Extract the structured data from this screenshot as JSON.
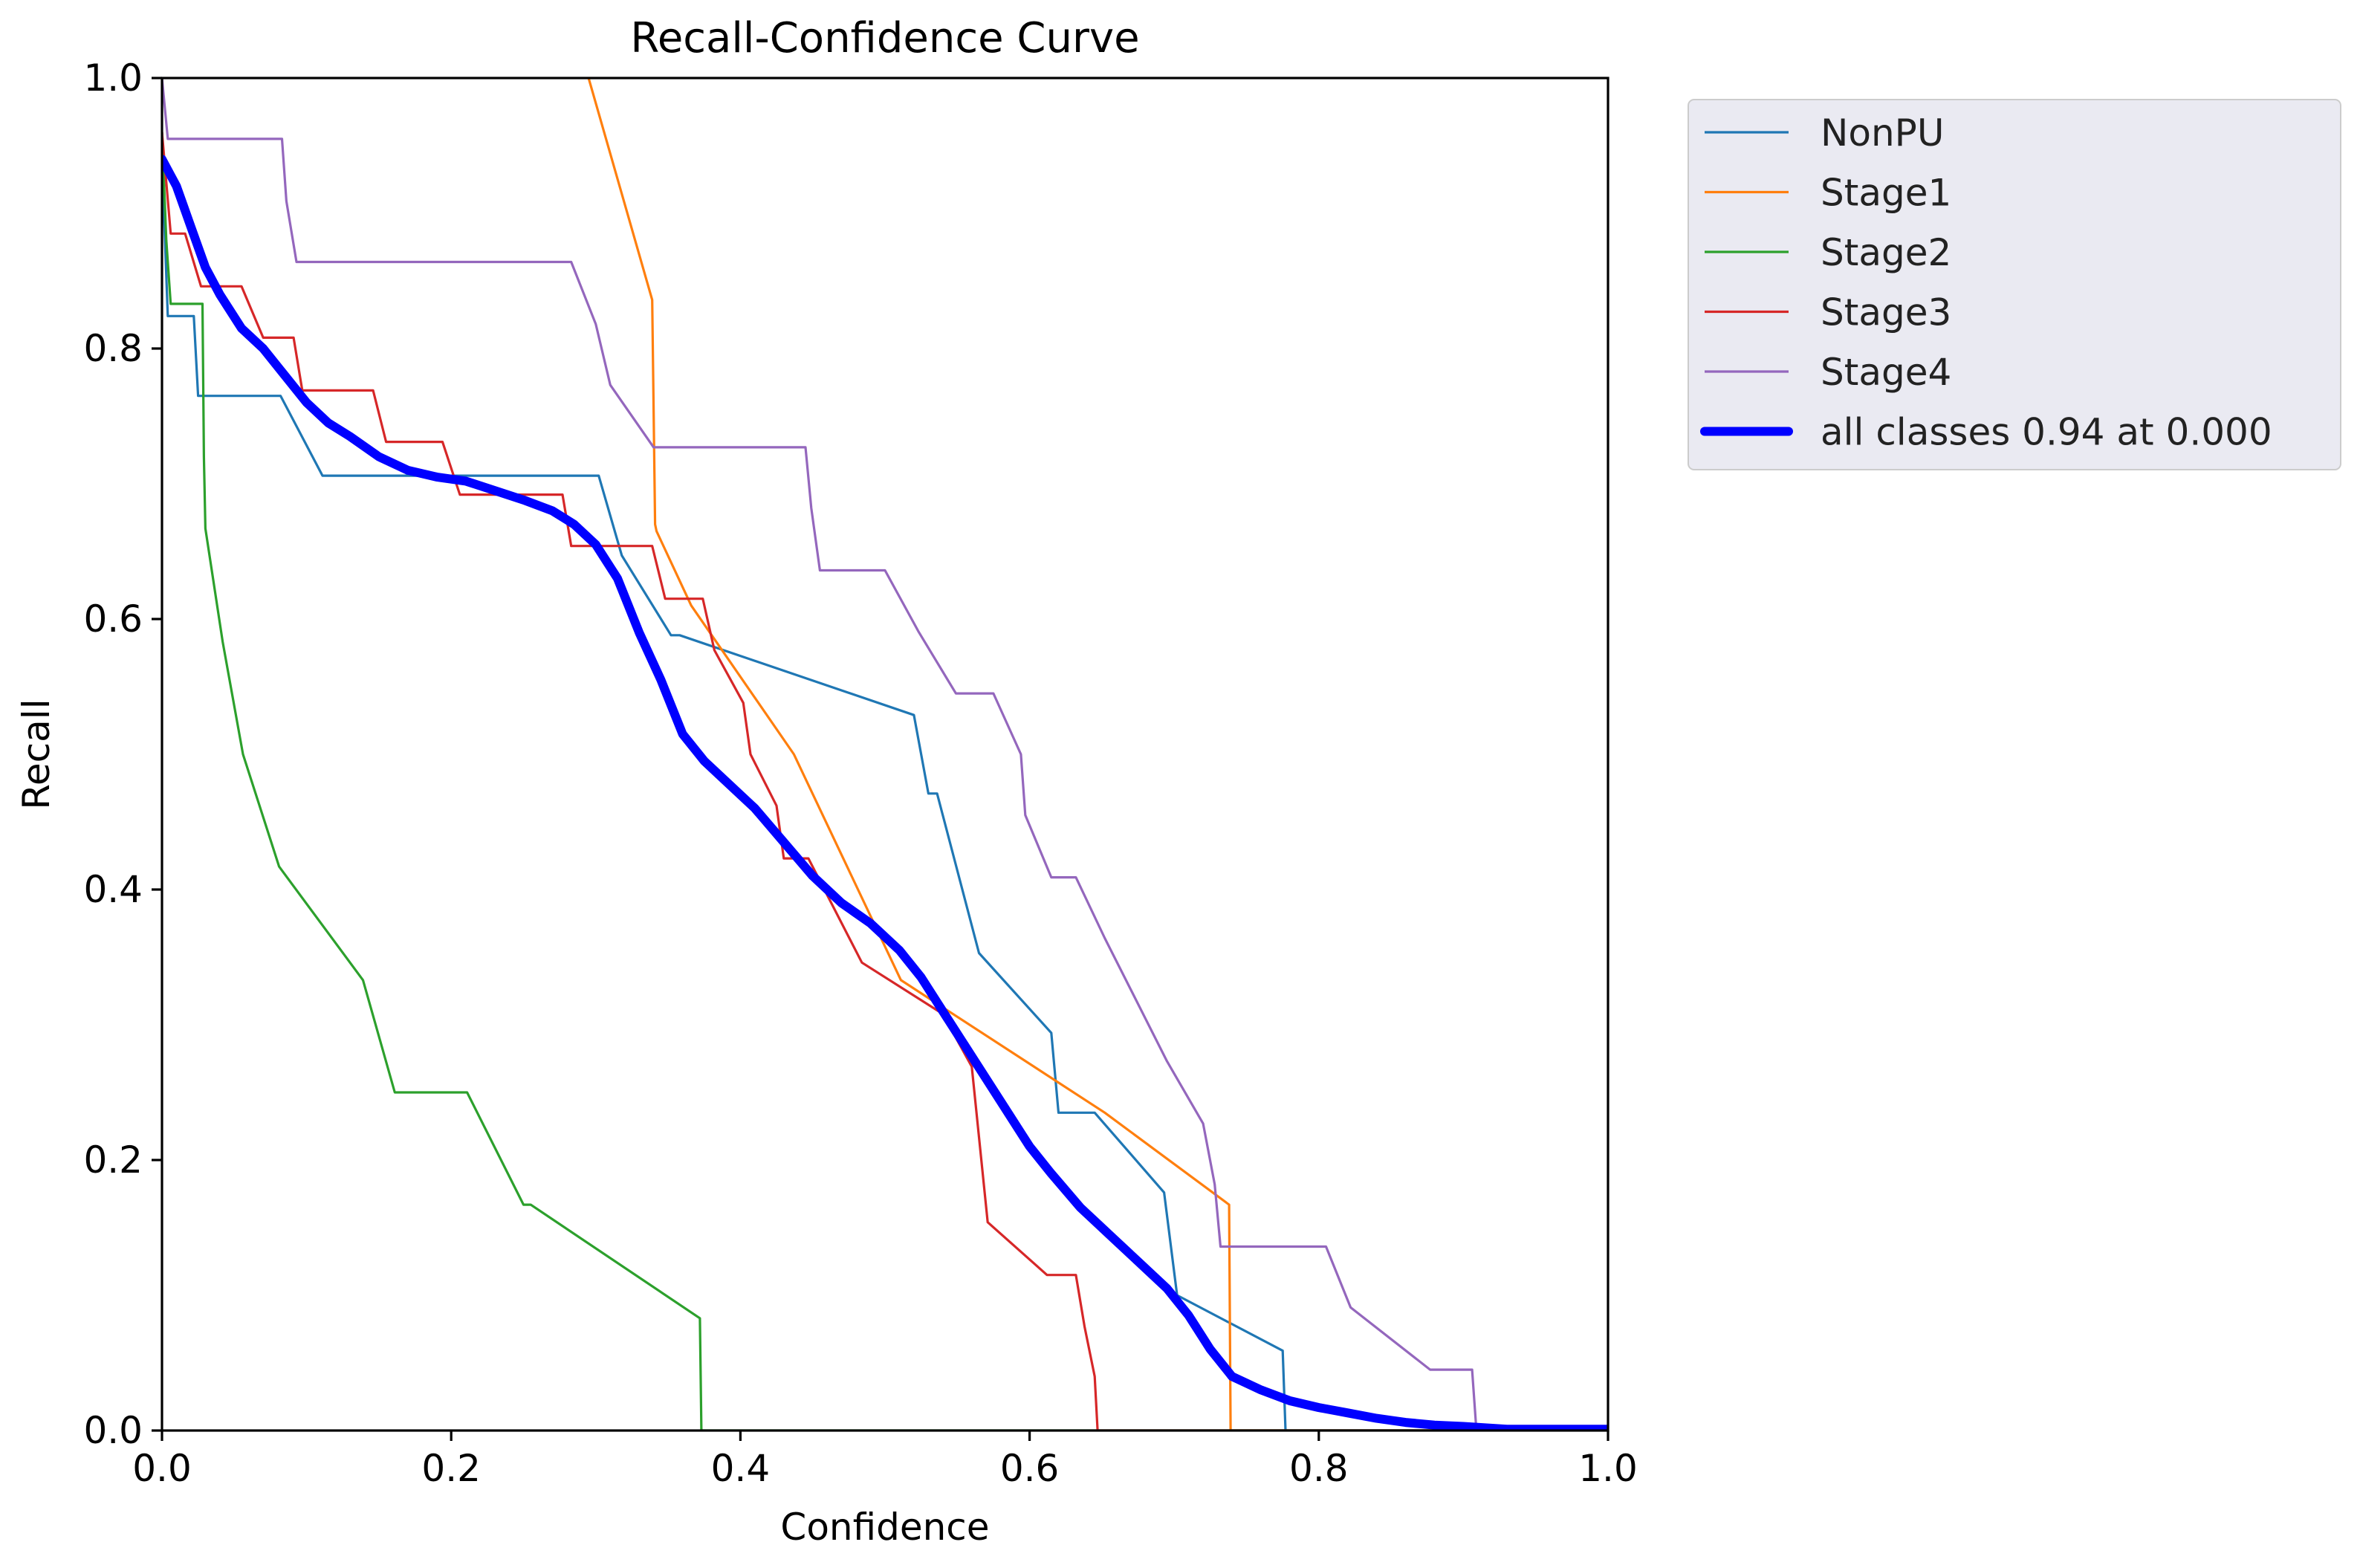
{
  "chart_data": {
    "type": "line",
    "title": "Recall-Confidence Curve",
    "xlabel": "Confidence",
    "ylabel": "Recall",
    "xlim": [
      0,
      1
    ],
    "ylim": [
      0,
      1
    ],
    "xticks": [
      "0.0",
      "0.2",
      "0.4",
      "0.6",
      "0.8",
      "1.0"
    ],
    "yticks": [
      "0.0",
      "0.2",
      "0.4",
      "0.6",
      "0.8",
      "1.0"
    ],
    "grid": false,
    "legend_position": "outside-top-right",
    "series": [
      {
        "name": "NonPU",
        "color": "#1f77b4",
        "thick": false,
        "points": [
          [
            0,
            0.94
          ],
          [
            0.004,
            0.824
          ],
          [
            0.022,
            0.824
          ],
          [
            0.025,
            0.765
          ],
          [
            0.082,
            0.765
          ],
          [
            0.111,
            0.706
          ],
          [
            0.302,
            0.706
          ],
          [
            0.318,
            0.647
          ],
          [
            0.352,
            0.588
          ],
          [
            0.358,
            0.588
          ],
          [
            0.52,
            0.529
          ],
          [
            0.53,
            0.471
          ],
          [
            0.536,
            0.471
          ],
          [
            0.565,
            0.353
          ],
          [
            0.615,
            0.294
          ],
          [
            0.62,
            0.235
          ],
          [
            0.645,
            0.235
          ],
          [
            0.693,
            0.176
          ],
          [
            0.702,
            0.1
          ],
          [
            0.775,
            0.059
          ],
          [
            0.777,
            0
          ],
          [
            1,
            0
          ]
        ]
      },
      {
        "name": "Stage1",
        "color": "#ff7f0e",
        "thick": false,
        "points": [
          [
            0.295,
            1.0
          ],
          [
            0.339,
            0.836
          ],
          [
            0.341,
            0.67
          ],
          [
            0.342,
            0.665
          ],
          [
            0.366,
            0.61
          ],
          [
            0.437,
            0.5
          ],
          [
            0.511,
            0.333
          ],
          [
            0.652,
            0.235
          ],
          [
            0.738,
            0.167
          ],
          [
            0.739,
            0
          ],
          [
            1,
            0
          ]
        ]
      },
      {
        "name": "Stage2",
        "color": "#2ca02c",
        "thick": false,
        "points": [
          [
            0,
            0.96
          ],
          [
            0.003,
            0.88
          ],
          [
            0.006,
            0.833
          ],
          [
            0.028,
            0.833
          ],
          [
            0.029,
            0.72
          ],
          [
            0.03,
            0.667
          ],
          [
            0.042,
            0.583
          ],
          [
            0.056,
            0.5
          ],
          [
            0.081,
            0.417
          ],
          [
            0.139,
            0.333
          ],
          [
            0.161,
            0.25
          ],
          [
            0.211,
            0.25
          ],
          [
            0.25,
            0.167
          ],
          [
            0.255,
            0.167
          ],
          [
            0.372,
            0.083
          ],
          [
            0.373,
            0
          ],
          [
            1,
            0
          ]
        ]
      },
      {
        "name": "Stage3",
        "color": "#d62728",
        "thick": false,
        "points": [
          [
            0,
            0.96
          ],
          [
            0.006,
            0.885
          ],
          [
            0.016,
            0.885
          ],
          [
            0.027,
            0.846
          ],
          [
            0.055,
            0.846
          ],
          [
            0.07,
            0.808
          ],
          [
            0.091,
            0.808
          ],
          [
            0.097,
            0.769
          ],
          [
            0.146,
            0.769
          ],
          [
            0.155,
            0.731
          ],
          [
            0.194,
            0.731
          ],
          [
            0.206,
            0.692
          ],
          [
            0.277,
            0.692
          ],
          [
            0.283,
            0.654
          ],
          [
            0.339,
            0.654
          ],
          [
            0.348,
            0.615
          ],
          [
            0.374,
            0.615
          ],
          [
            0.382,
            0.577
          ],
          [
            0.402,
            0.538
          ],
          [
            0.407,
            0.5
          ],
          [
            0.425,
            0.462
          ],
          [
            0.43,
            0.423
          ],
          [
            0.447,
            0.423
          ],
          [
            0.484,
            0.346
          ],
          [
            0.54,
            0.308
          ],
          [
            0.56,
            0.269
          ],
          [
            0.571,
            0.154
          ],
          [
            0.612,
            0.115
          ],
          [
            0.632,
            0.115
          ],
          [
            0.638,
            0.077
          ],
          [
            0.645,
            0.04
          ],
          [
            0.647,
            0
          ],
          [
            1,
            0
          ]
        ]
      },
      {
        "name": "Stage4",
        "color": "#9467bd",
        "thick": false,
        "points": [
          [
            0,
            1.0
          ],
          [
            0.004,
            0.955
          ],
          [
            0.083,
            0.955
          ],
          [
            0.086,
            0.909
          ],
          [
            0.093,
            0.864
          ],
          [
            0.283,
            0.864
          ],
          [
            0.3,
            0.818
          ],
          [
            0.31,
            0.773
          ],
          [
            0.34,
            0.727
          ],
          [
            0.445,
            0.727
          ],
          [
            0.449,
            0.682
          ],
          [
            0.455,
            0.636
          ],
          [
            0.5,
            0.636
          ],
          [
            0.523,
            0.591
          ],
          [
            0.549,
            0.545
          ],
          [
            0.575,
            0.545
          ],
          [
            0.594,
            0.5
          ],
          [
            0.597,
            0.455
          ],
          [
            0.615,
            0.409
          ],
          [
            0.632,
            0.409
          ],
          [
            0.652,
            0.364
          ],
          [
            0.695,
            0.273
          ],
          [
            0.72,
            0.227
          ],
          [
            0.728,
            0.182
          ],
          [
            0.732,
            0.136
          ],
          [
            0.805,
            0.136
          ],
          [
            0.822,
            0.091
          ],
          [
            0.877,
            0.045
          ],
          [
            0.906,
            0.045
          ],
          [
            0.909,
            0
          ],
          [
            1,
            0
          ]
        ]
      },
      {
        "name": "all classes 0.94 at 0.000",
        "color": "#0000ff",
        "thick": true,
        "points": [
          [
            0,
            0.94
          ],
          [
            0.01,
            0.92
          ],
          [
            0.02,
            0.89
          ],
          [
            0.03,
            0.86
          ],
          [
            0.04,
            0.84
          ],
          [
            0.055,
            0.815
          ],
          [
            0.07,
            0.8
          ],
          [
            0.085,
            0.78
          ],
          [
            0.1,
            0.76
          ],
          [
            0.115,
            0.745
          ],
          [
            0.13,
            0.735
          ],
          [
            0.15,
            0.72
          ],
          [
            0.17,
            0.71
          ],
          [
            0.19,
            0.705
          ],
          [
            0.21,
            0.702
          ],
          [
            0.23,
            0.695
          ],
          [
            0.25,
            0.688
          ],
          [
            0.27,
            0.68
          ],
          [
            0.285,
            0.67
          ],
          [
            0.3,
            0.655
          ],
          [
            0.315,
            0.63
          ],
          [
            0.33,
            0.59
          ],
          [
            0.345,
            0.555
          ],
          [
            0.36,
            0.515
          ],
          [
            0.375,
            0.495
          ],
          [
            0.395,
            0.475
          ],
          [
            0.41,
            0.46
          ],
          [
            0.43,
            0.435
          ],
          [
            0.45,
            0.41
          ],
          [
            0.47,
            0.39
          ],
          [
            0.49,
            0.375
          ],
          [
            0.51,
            0.355
          ],
          [
            0.525,
            0.335
          ],
          [
            0.54,
            0.31
          ],
          [
            0.555,
            0.285
          ],
          [
            0.57,
            0.26
          ],
          [
            0.585,
            0.235
          ],
          [
            0.6,
            0.21
          ],
          [
            0.615,
            0.19
          ],
          [
            0.635,
            0.165
          ],
          [
            0.655,
            0.145
          ],
          [
            0.675,
            0.125
          ],
          [
            0.695,
            0.105
          ],
          [
            0.71,
            0.085
          ],
          [
            0.725,
            0.06
          ],
          [
            0.74,
            0.04
          ],
          [
            0.76,
            0.03
          ],
          [
            0.78,
            0.022
          ],
          [
            0.8,
            0.017
          ],
          [
            0.82,
            0.013
          ],
          [
            0.84,
            0.009
          ],
          [
            0.86,
            0.006
          ],
          [
            0.88,
            0.004
          ],
          [
            0.9,
            0.003
          ],
          [
            0.93,
            0.001
          ],
          [
            0.96,
            0.001
          ],
          [
            1.0,
            0.001
          ]
        ]
      }
    ]
  }
}
